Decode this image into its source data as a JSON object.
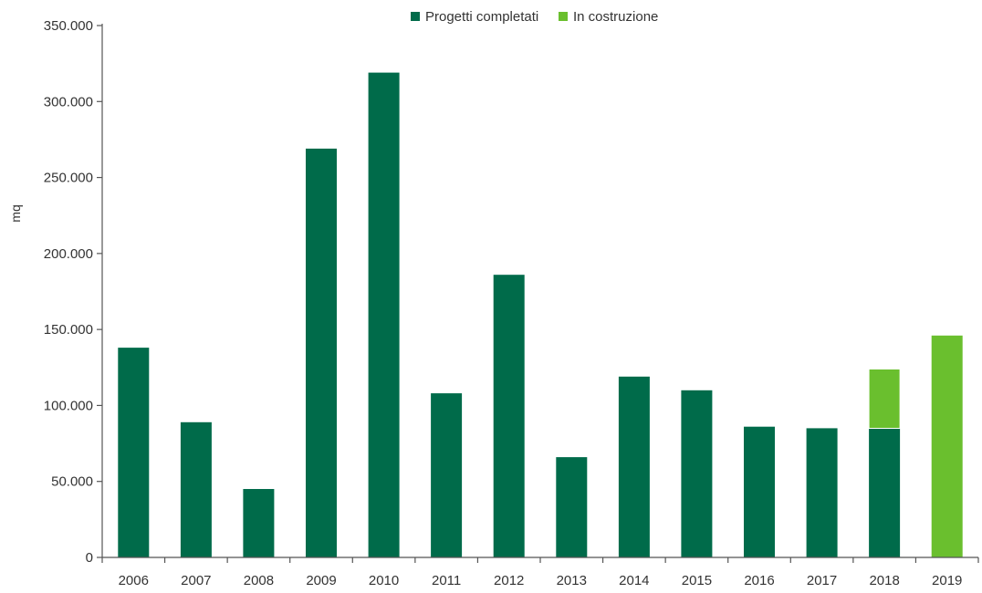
{
  "chart_data": {
    "type": "bar",
    "stacked": true,
    "title": "",
    "xlabel": "",
    "ylabel": "mq",
    "ylim": [
      0,
      350000
    ],
    "y_ticks": [
      0,
      50000,
      100000,
      150000,
      200000,
      250000,
      300000,
      350000
    ],
    "y_tick_labels": [
      "0",
      "50.000",
      "100.000",
      "150.000",
      "200.000",
      "250.000",
      "300.000",
      "350.000"
    ],
    "grid": false,
    "legend_position": "top-center",
    "categories": [
      "2006",
      "2007",
      "2008",
      "2009",
      "2010",
      "2011",
      "2012",
      "2013",
      "2014",
      "2015",
      "2016",
      "2017",
      "2018",
      "2019"
    ],
    "series": [
      {
        "name": "Progetti completati",
        "color": "#006b4a",
        "values": [
          138000,
          89000,
          45000,
          269000,
          319000,
          108000,
          186000,
          66000,
          119000,
          110000,
          86000,
          85000,
          85000,
          0
        ]
      },
      {
        "name": "In costruzione",
        "color": "#6abf2e",
        "values": [
          0,
          0,
          0,
          0,
          0,
          0,
          0,
          0,
          0,
          0,
          0,
          0,
          39000,
          146000
        ]
      }
    ]
  }
}
